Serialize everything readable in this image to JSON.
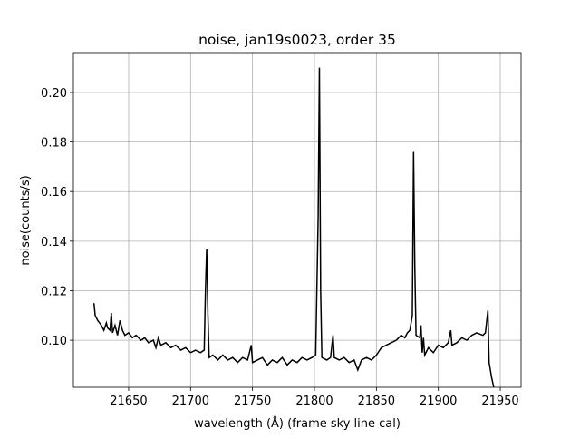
{
  "chart_data": {
    "type": "line",
    "title": "noise, jan19s0023, order 35",
    "x_label": "wavelength (Å) (frame sky line cal)",
    "y_label": "noise(counts/s)",
    "xlim": [
      21605.4,
      21966.8
    ],
    "ylim": [
      0.081,
      0.2161
    ],
    "xticks": [
      21650,
      21700,
      21750,
      21800,
      21850,
      21900,
      21950
    ],
    "yticks": [
      {
        "value": 0.1,
        "label": "0.10"
      },
      {
        "value": 0.12,
        "label": "0.12"
      },
      {
        "value": 0.14,
        "label": "0.14"
      },
      {
        "value": 0.16,
        "label": "0.16"
      },
      {
        "value": 0.18,
        "label": "0.18"
      },
      {
        "value": 0.2,
        "label": "0.20"
      }
    ],
    "grid": true,
    "series": [
      {
        "color": "#000000",
        "x": [
          21622,
          21623,
          21625,
          21628,
          21630,
          21632,
          21633,
          21635,
          21636,
          21637,
          21639,
          21641,
          21643,
          21645,
          21647,
          21650,
          21653,
          21656,
          21660,
          21663,
          21666,
          21670,
          21672,
          21674,
          21676,
          21680,
          21684,
          21688,
          21692,
          21696,
          21700,
          21704,
          21708,
          21711,
          21712,
          21713,
          21714,
          21715,
          21718,
          21722,
          21726,
          21730,
          21734,
          21738,
          21742,
          21746,
          21749,
          21750,
          21754,
          21758,
          21762,
          21766,
          21770,
          21774,
          21778,
          21782,
          21786,
          21790,
          21794,
          21798,
          21801,
          21803,
          21804,
          21805,
          21806,
          21810,
          21813,
          21815,
          21816,
          21820,
          21824,
          21828,
          21832,
          21835,
          21838,
          21842,
          21846,
          21850,
          21854,
          21858,
          21862,
          21866,
          21870,
          21873,
          21875,
          21877,
          21879,
          21880,
          21881,
          21882,
          21885,
          21886,
          21887,
          21888,
          21889,
          21892,
          21896,
          21900,
          21904,
          21908,
          21910,
          21911,
          21915,
          21919,
          21923,
          21927,
          21931,
          21936,
          21938,
          21940,
          21941,
          21943,
          21946
        ],
        "values": [
          0.115,
          0.11,
          0.108,
          0.106,
          0.104,
          0.107,
          0.105,
          0.104,
          0.111,
          0.103,
          0.106,
          0.102,
          0.108,
          0.104,
          0.102,
          0.103,
          0.101,
          0.102,
          0.1,
          0.101,
          0.099,
          0.1,
          0.097,
          0.101,
          0.098,
          0.099,
          0.097,
          0.098,
          0.096,
          0.097,
          0.095,
          0.096,
          0.095,
          0.096,
          0.12,
          0.137,
          0.11,
          0.093,
          0.094,
          0.092,
          0.094,
          0.092,
          0.093,
          0.091,
          0.093,
          0.092,
          0.098,
          0.091,
          0.092,
          0.093,
          0.09,
          0.092,
          0.091,
          0.093,
          0.09,
          0.092,
          0.091,
          0.093,
          0.092,
          0.093,
          0.094,
          0.15,
          0.21,
          0.12,
          0.093,
          0.092,
          0.093,
          0.102,
          0.093,
          0.092,
          0.093,
          0.091,
          0.092,
          0.088,
          0.092,
          0.093,
          0.092,
          0.094,
          0.097,
          0.098,
          0.099,
          0.1,
          0.102,
          0.101,
          0.103,
          0.104,
          0.11,
          0.176,
          0.13,
          0.102,
          0.101,
          0.106,
          0.095,
          0.101,
          0.094,
          0.097,
          0.095,
          0.098,
          0.097,
          0.099,
          0.104,
          0.098,
          0.099,
          0.101,
          0.1,
          0.102,
          0.103,
          0.102,
          0.103,
          0.112,
          0.091,
          0.085,
          0.078
        ]
      }
    ]
  }
}
